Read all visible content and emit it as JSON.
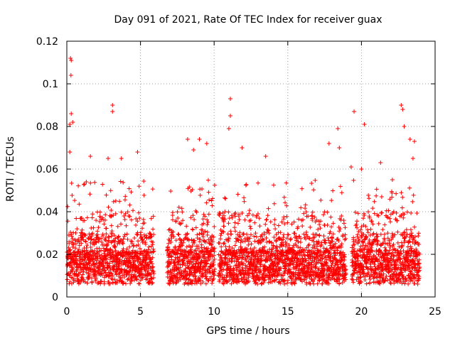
{
  "chart_data": {
    "type": "scatter",
    "title": "Day 091 of 2021, Rate Of TEC Index for receiver guax",
    "xlabel": "GPS time / hours",
    "ylabel": "ROTI / TECUs",
    "xlim": [
      0,
      25
    ],
    "ylim": [
      0,
      0.12
    ],
    "x_ticks": [
      0,
      5,
      10,
      15,
      20,
      25
    ],
    "x_tick_labels": [
      "0",
      "5",
      "10",
      "15",
      "20",
      "25"
    ],
    "y_ticks": [
      0,
      0.02,
      0.04,
      0.06,
      0.08,
      0.1,
      0.12
    ],
    "y_tick_labels": [
      "0",
      "0.02",
      "0.04",
      "0.06",
      "0.08",
      "0.1",
      "0.12"
    ],
    "grid": true,
    "marker": "plus",
    "color": "#ff0000",
    "data_gaps_hours": [
      [
        5.9,
        6.8
      ],
      [
        10.05,
        10.3
      ],
      [
        18.95,
        19.35
      ]
    ],
    "notable_points": [
      {
        "x": 0.25,
        "y": 0.112
      },
      {
        "x": 0.3,
        "y": 0.111
      },
      {
        "x": 0.28,
        "y": 0.104
      },
      {
        "x": 0.3,
        "y": 0.086
      },
      {
        "x": 0.2,
        "y": 0.081
      },
      {
        "x": 0.4,
        "y": 0.082
      },
      {
        "x": 0.2,
        "y": 0.068
      },
      {
        "x": 3.1,
        "y": 0.09
      },
      {
        "x": 3.1,
        "y": 0.087
      },
      {
        "x": 1.6,
        "y": 0.066
      },
      {
        "x": 2.8,
        "y": 0.065
      },
      {
        "x": 3.7,
        "y": 0.065
      },
      {
        "x": 4.8,
        "y": 0.068
      },
      {
        "x": 8.2,
        "y": 0.074
      },
      {
        "x": 9.0,
        "y": 0.074
      },
      {
        "x": 9.5,
        "y": 0.072
      },
      {
        "x": 8.6,
        "y": 0.069
      },
      {
        "x": 11.1,
        "y": 0.093
      },
      {
        "x": 11.1,
        "y": 0.085
      },
      {
        "x": 11.0,
        "y": 0.079
      },
      {
        "x": 11.9,
        "y": 0.07
      },
      {
        "x": 13.5,
        "y": 0.066
      },
      {
        "x": 17.8,
        "y": 0.072
      },
      {
        "x": 18.4,
        "y": 0.079
      },
      {
        "x": 18.5,
        "y": 0.07
      },
      {
        "x": 19.5,
        "y": 0.087
      },
      {
        "x": 19.3,
        "y": 0.061
      },
      {
        "x": 20.2,
        "y": 0.081
      },
      {
        "x": 20.0,
        "y": 0.06
      },
      {
        "x": 21.3,
        "y": 0.063
      },
      {
        "x": 22.7,
        "y": 0.09
      },
      {
        "x": 22.8,
        "y": 0.088
      },
      {
        "x": 22.9,
        "y": 0.08
      },
      {
        "x": 23.3,
        "y": 0.074
      },
      {
        "x": 23.6,
        "y": 0.073
      },
      {
        "x": 23.5,
        "y": 0.065
      }
    ]
  }
}
